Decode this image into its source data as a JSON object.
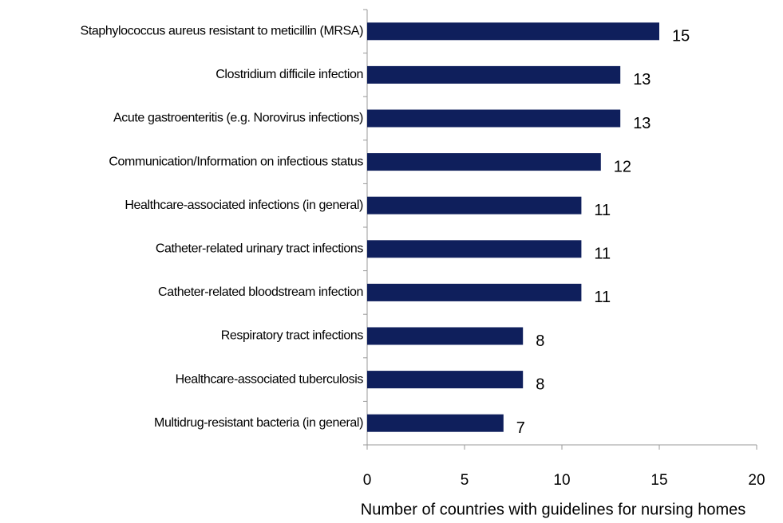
{
  "chart_data": {
    "type": "bar",
    "orientation": "horizontal",
    "x_label": "Number of countries with guidelines for nursing homes",
    "categories": [
      "Staphylococcus aureus resistant to meticillin (MRSA)",
      "Clostridium difficile infection",
      "Acute gastroenteritis (e.g. Norovirus infections)",
      "Communication/Information on infectious status",
      "Healthcare-associated infections (in general)",
      "Catheter-related urinary tract infections",
      "Catheter-related bloodstream infection",
      "Respiratory tract infections",
      "Healthcare-associated tuberculosis",
      "Multidrug-resistant bacteria (in general)"
    ],
    "values": [
      15,
      13,
      13,
      12,
      11,
      11,
      11,
      8,
      8,
      7
    ],
    "color": "#0f1f5c",
    "xlim": [
      0,
      20
    ],
    "xticks": [
      0,
      5,
      10,
      15,
      20
    ],
    "grid": false
  }
}
